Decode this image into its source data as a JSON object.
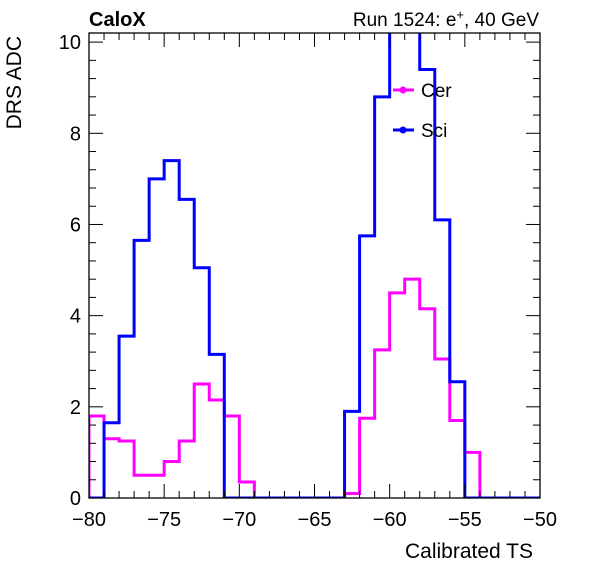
{
  "header": {
    "left": "CaloX",
    "right_prefix": "Run 1524: e",
    "right_sup": "+",
    "right_suffix": ", 40 GeV"
  },
  "chart_data": {
    "type": "line",
    "style": "step-histogram",
    "xlabel": "Calibrated TS",
    "ylabel": "DRS ADC",
    "xlim": [
      -80,
      -50
    ],
    "ylim": [
      0,
      10.2
    ],
    "xticks": [
      -80,
      -75,
      -70,
      -65,
      -60,
      -55,
      -50
    ],
    "xtick_labels": [
      "−80",
      "−75",
      "−70",
      "−65",
      "−60",
      "−55",
      "−50"
    ],
    "yticks": [
      0,
      2,
      4,
      6,
      8,
      10
    ],
    "ytick_labels": [
      "0",
      "2",
      "4",
      "6",
      "8",
      "10"
    ],
    "grid": false,
    "legend_position": "top-center",
    "bin_edges": [
      -80,
      -79,
      -78,
      -77,
      -76,
      -75,
      -74,
      -73,
      -72,
      -71,
      -70,
      -69,
      -68,
      -67,
      -66,
      -65,
      -64,
      -63,
      -62,
      -61,
      -60,
      -59,
      -58,
      -57,
      -56,
      -55,
      -54,
      -53,
      -52,
      -51,
      -50
    ],
    "series": [
      {
        "name": "Cer",
        "color": "#ff00ff",
        "values": [
          1.8,
          1.3,
          1.25,
          0.5,
          0.5,
          0.8,
          1.25,
          2.5,
          2.15,
          1.8,
          0.35,
          0,
          0,
          0,
          0,
          0,
          0,
          0.1,
          1.75,
          3.25,
          4.5,
          4.8,
          4.15,
          3.05,
          1.7,
          1.0,
          0,
          0,
          0,
          0
        ]
      },
      {
        "name": "Sci",
        "color": "#0000ff",
        "values": [
          0,
          1.65,
          3.55,
          5.65,
          7.0,
          7.4,
          6.55,
          5.05,
          3.15,
          0,
          0,
          0,
          0,
          0,
          0,
          0,
          0,
          1.9,
          5.75,
          8.8,
          10.5,
          10.5,
          9.4,
          6.1,
          2.55,
          0,
          0,
          0,
          0,
          0
        ]
      }
    ]
  }
}
